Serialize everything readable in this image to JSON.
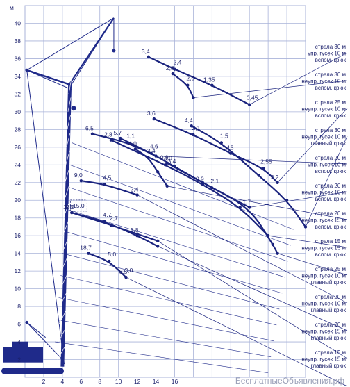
{
  "colors": {
    "curve": "#1a237e",
    "grid": "#a9b3d9",
    "crane": "#1f2a8a",
    "text": "#1a1f6b"
  },
  "watermark": "БесплатныеОбъявления.рф",
  "chart_data": {
    "type": "line",
    "title": "",
    "xlabel": "",
    "ylabel": "м",
    "xlim": [
      0,
      30
    ],
    "ylim": [
      0,
      42
    ],
    "x_ticks": [
      2,
      4,
      6,
      8,
      10,
      12,
      14,
      16,
      18,
      20,
      22,
      24,
      26,
      28,
      30
    ],
    "x_tick_labels": [
      "2",
      "4",
      "6",
      "8",
      "10",
      "12",
      "14",
      "16",
      "",
      "",
      "",
      "",
      "",
      "",
      ""
    ],
    "y_ticks": [
      2,
      4,
      6,
      8,
      10,
      12,
      14,
      16,
      18,
      20,
      22,
      24,
      26,
      28,
      30,
      32,
      34,
      36,
      38,
      40
    ],
    "grid": true,
    "series": [
      {
        "name": "стрела 30 м упр. гусек 10 м вспом. крюк",
        "points": [
          [
            13.2,
            36.2
          ],
          [
            16.0,
            34.8
          ],
          [
            20.0,
            33.0
          ],
          [
            24.0,
            30.8
          ]
        ],
        "labels": [
          "3,4",
          "2,4",
          "1,35",
          "0,45"
        ]
      },
      {
        "name": "стрела 30 м неупр. гусек 10 м вспом. крюк",
        "points": [
          [
            15.8,
            34.3
          ],
          [
            17.4,
            33.0
          ],
          [
            18.0,
            31.6
          ]
        ],
        "labels": [
          "2,8",
          "2,0"
        ]
      },
      {
        "name": "стрела 25 м неупр. гусек 10 м вспом. крюк",
        "points": [
          [
            13.8,
            29.2
          ],
          [
            18.0,
            27.4
          ],
          [
            22.0,
            25.3
          ],
          [
            25.5,
            23.6
          ],
          [
            27.0,
            22.0
          ]
        ],
        "labels": [
          "3,6",
          "2,1",
          "1,15",
          "2,55",
          "2,2"
        ]
      },
      {
        "name": "стрела 30 м неупр. гусек 10 м главный крюк",
        "points": [
          [
            17.8,
            28.4
          ],
          [
            21.0,
            26.5
          ],
          [
            25.0,
            22.8
          ],
          [
            28.0,
            20.0
          ],
          [
            30.0,
            17.0
          ]
        ],
        "labels": [
          "4,4",
          "1,5"
        ]
      },
      {
        "name": "стрела 20 м упр. гусек 10 м вспом. крюк",
        "points": [
          [
            7.2,
            27.5
          ],
          [
            11.0,
            26.5
          ],
          [
            14.0,
            25.0
          ]
        ],
        "labels": [
          "6,5",
          "1,1"
        ]
      },
      {
        "name": "стрела 20 м неупр. гусек 10 м вспом. крюк",
        "points": [
          [
            10.2,
            27.0
          ],
          [
            13.5,
            25.3
          ],
          [
            16.0,
            23.8
          ],
          [
            20.0,
            21.4
          ],
          [
            24.0,
            19.2
          ]
        ],
        "labels": [
          "5,7",
          "4,6",
          "3,4",
          "2,1",
          "1,7"
        ]
      },
      {
        "name": "стрела 20 м неупр. гусек 15 м вспом. крюк",
        "points": [
          [
            11.8,
            25.8
          ],
          [
            13.2,
            24.8
          ],
          [
            14.2,
            23.2
          ],
          [
            15.2,
            21.6
          ]
        ],
        "labels": [
          "4,0",
          "3,4"
        ]
      },
      {
        "name": "стрела 15 м неупр. гусек 15 м вспом. крюк",
        "points": [
          [
            9.2,
            26.8
          ],
          [
            15.0,
            24.0
          ],
          [
            19.0,
            21.8
          ],
          [
            23.0,
            19.2
          ],
          [
            26.0,
            16.0
          ]
        ],
        "labels": [
          "2,8",
          "3,0",
          "0,9"
        ]
      },
      {
        "name": "стрела 20 м неупр. гусек 15 м главный крюк",
        "points": [
          [
            15.2,
            24.2
          ],
          [
            19.0,
            22.0
          ],
          [
            24.0,
            19.2
          ],
          [
            26.5,
            15.0
          ],
          [
            27.0,
            14.0
          ]
        ],
        "labels": [
          "0,9"
        ]
      },
      {
        "name": "стрела 25 м неупр. гусек 10 м главный крюк",
        "points": [
          [
            6.0,
            22.2
          ],
          [
            8.5,
            21.8
          ],
          [
            12.0,
            20.6
          ]
        ],
        "labels": [
          "9,0",
          "4,5",
          "2,4"
        ]
      },
      {
        "name": "стрела 20 м неупр. гусек 10 м главный крюк",
        "points": [
          [
            5.0,
            18.6
          ],
          [
            8.5,
            17.6
          ],
          [
            12.0,
            16.0
          ],
          [
            14.2,
            14.8
          ]
        ],
        "labels": [
          "13,5",
          "4,7",
          "1,8"
        ]
      },
      {
        "name": "стрела 20 м неупр. гусек 15 м главный крюк",
        "points": [
          [
            5.0,
            18.6
          ],
          [
            9.2,
            17.2
          ],
          [
            12.0,
            16.2
          ],
          [
            14.2,
            15.4
          ]
        ],
        "labels": [
          "5,5",
          "2,7"
        ]
      },
      {
        "name": "стрела 15 м неупр. гусек 15 м главный крюк",
        "points": [
          [
            6.8,
            14.0
          ],
          [
            9.0,
            13.1
          ],
          [
            10.8,
            11.3
          ]
        ],
        "labels": [
          "18,7",
          "5,0",
          "6,5",
          "3,0"
        ]
      }
    ],
    "boxed_label": "15,0",
    "legend": [
      {
        "line1": "стрела 30 м",
        "line2": "упр. гусек 10 м",
        "line3": "вспом. крюк"
      },
      {
        "line1": "стрела 30 м",
        "line2": "неупр. гусек 10 м",
        "line3": "вспом. крюк"
      },
      {
        "line1": "стрела 25 м",
        "line2": "неупр. гусек 10 м",
        "line3": "вспом. крюк"
      },
      {
        "line1": "стрела 30 м",
        "line2": "неупр. гусек 10 м",
        "line3": "главный крюк"
      },
      {
        "line1": "стрела 20 м",
        "line2": "упр. гусек 10 м",
        "line3": "вспом. крюк"
      },
      {
        "line1": "стрела 20 м",
        "line2": "неупр. гусек 10 м",
        "line3": "вспом. крюк"
      },
      {
        "line1": "стрела 20 м",
        "line2": "неупр. гусек 15 м",
        "line3": "вспом. крюк"
      },
      {
        "line1": "стрела 15 м",
        "line2": "неупр. гусек 15 м",
        "line3": "вспом. крюк"
      },
      {
        "line1": "стрела 25 м",
        "line2": "неупр. гусек 10 м",
        "line3": "главный крюк"
      },
      {
        "line1": "стрела 20 м",
        "line2": "неупр. гусек 10 м",
        "line3": "главный крюк"
      },
      {
        "line1": "стрела 20 м",
        "line2": "неупр. гусек 15 м",
        "line3": "главный крюк"
      },
      {
        "line1": "стрела 15 м",
        "line2": "неупр. гусек 15 м",
        "line3": "главный крюк"
      }
    ]
  }
}
